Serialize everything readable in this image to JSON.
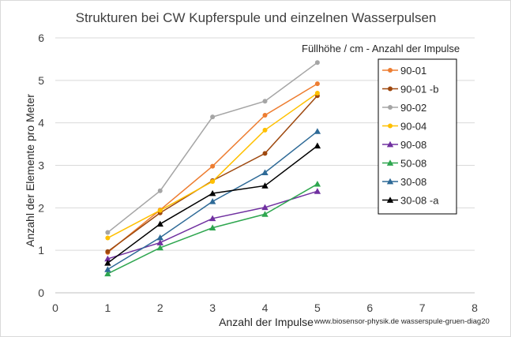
{
  "chart_data": {
    "type": "line",
    "title": "Strukturen bei CW Kupferspule und einzelnen Wasserpulsen",
    "xlabel": "Anzahl der Impulse",
    "ylabel": "Anzahl der Elemente pro Meter",
    "xlim": [
      0,
      8
    ],
    "ylim": [
      0,
      6
    ],
    "xticks": [
      "0",
      "1",
      "2",
      "3",
      "4",
      "5",
      "6",
      "7",
      "8"
    ],
    "yticks": [
      "0",
      "1",
      "2",
      "3",
      "4",
      "5",
      "6"
    ],
    "grid": "horizontal",
    "legend_position": "right",
    "legend_title": "Füllhöhe / cm  - Anzahl der Impulse",
    "footer_note": "www.biosensor-physik.de  wasserspule-gruen-diag20",
    "x": [
      1,
      2,
      3,
      4,
      5
    ],
    "series": [
      {
        "name": "90-01",
        "color": "#ed7d31",
        "marker": "circle",
        "values": [
          0.95,
          1.95,
          2.98,
          4.18,
          4.92
        ]
      },
      {
        "name": "90-01 -b",
        "color": "#9e480e",
        "marker": "circle",
        "values": [
          0.97,
          1.88,
          2.64,
          3.28,
          4.64
        ]
      },
      {
        "name": "90-02",
        "color": "#a5a5a5",
        "marker": "circle",
        "values": [
          1.42,
          2.4,
          4.14,
          4.51,
          5.42
        ]
      },
      {
        "name": "90-04",
        "color": "#ffc000",
        "marker": "circle",
        "values": [
          1.29,
          1.94,
          2.62,
          3.83,
          4.7
        ]
      },
      {
        "name": "90-08",
        "color": "#7030a0",
        "marker": "triangle",
        "values": [
          0.8,
          1.18,
          1.75,
          2.01,
          2.39
        ]
      },
      {
        "name": "50-08",
        "color": "#2ea64f",
        "marker": "triangle",
        "values": [
          0.45,
          1.06,
          1.53,
          1.85,
          2.56
        ]
      },
      {
        "name": "30-08",
        "color": "#2e6a97",
        "marker": "triangle",
        "values": [
          0.55,
          1.3,
          2.15,
          2.83,
          3.8
        ]
      },
      {
        "name": "30-08 -a",
        "color": "#000000",
        "marker": "triangle",
        "values": [
          0.7,
          1.62,
          2.34,
          2.52,
          3.46
        ]
      }
    ]
  }
}
